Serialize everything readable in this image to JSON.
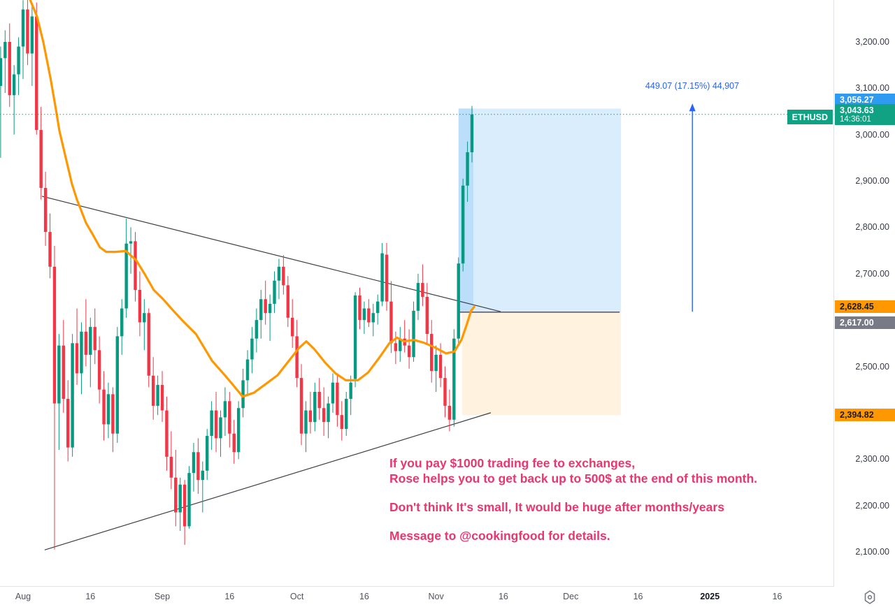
{
  "symbol_badge": {
    "symbol": "ETHUSD",
    "price": "3,043.63",
    "countdown": "14:36:01"
  },
  "measure_label": {
    "text": "449.07 (17.15%) 44,907"
  },
  "annotation": {
    "lines": [
      "If you pay $1000 trading fee to exchanges,",
      "Rose helps you to get back up to 500$ at the end of this month.",
      "Don't think It's small, It would be huge after months/years",
      "Message to @cookingfood for details."
    ]
  },
  "price_axis": {
    "ticks": [
      {
        "label": "3,200.00",
        "price": 3200
      },
      {
        "label": "3,100.00",
        "price": 3100
      },
      {
        "label": "3,000.00",
        "price": 3000
      },
      {
        "label": "2,900.00",
        "price": 2900
      },
      {
        "label": "2,800.00",
        "price": 2800
      },
      {
        "label": "2,700.00",
        "price": 2700
      },
      {
        "label": "2,500.00",
        "price": 2500
      },
      {
        "label": "2,300.00",
        "price": 2300
      },
      {
        "label": "2,200.00",
        "price": 2200
      },
      {
        "label": "2,100.00",
        "price": 2100
      }
    ],
    "badges": [
      {
        "id": "box-top-label",
        "label": "3,056.27",
        "price": 3056.27,
        "bg": "#2e9bf0",
        "fg": "#ffffff"
      },
      {
        "id": "ma-value-label",
        "label": "2,628.45",
        "price": 2628.45,
        "bg": "#ff9800",
        "fg": "#1b1b1b"
      },
      {
        "id": "hline-label",
        "label": "2,617.00",
        "price": 2617.0,
        "bg": "#787b86",
        "fg": "#ffffff"
      },
      {
        "id": "box-bottom-label",
        "label": "2,394.82",
        "price": 2394.82,
        "bg": "#ff9800",
        "fg": "#1b1b1b"
      }
    ]
  },
  "time_axis": {
    "labels": [
      {
        "text": "Aug",
        "day": 0,
        "bold": false
      },
      {
        "text": "16",
        "day": 15,
        "bold": false
      },
      {
        "text": "Sep",
        "day": 31,
        "bold": false
      },
      {
        "text": "16",
        "day": 46,
        "bold": false
      },
      {
        "text": "Oct",
        "day": 61,
        "bold": false
      },
      {
        "text": "16",
        "day": 76,
        "bold": false
      },
      {
        "text": "Nov",
        "day": 92,
        "bold": false
      },
      {
        "text": "16",
        "day": 107,
        "bold": false
      },
      {
        "text": "Dec",
        "day": 122,
        "bold": false
      },
      {
        "text": "16",
        "day": 137,
        "bold": false
      },
      {
        "text": "2025",
        "day": 153,
        "bold": true
      },
      {
        "text": "16",
        "day": 168,
        "bold": false
      }
    ]
  },
  "colors": {
    "up": "#089981",
    "down": "#f23645",
    "ma": "#ff9800",
    "trendline": "#3c3f46",
    "hline": "#50535e",
    "price_line": "#11a183",
    "measure_blue": "#2962ff",
    "box_blue_fill": "rgba(33,150,243,0.17)",
    "box_cream_fill": "rgba(255,167,38,0.14)",
    "promo_pink": "#e8366e"
  },
  "chart_data": {
    "type": "candlestick",
    "symbol": "ETHUSD",
    "timeframe": "1D",
    "x_axis_start": "Aug",
    "first_candle_day": -5,
    "price_range_visible": [
      2022,
      3286
    ],
    "grid": false,
    "last_price": 3043.63,
    "candles": [
      [
        3105,
        3190,
        2950,
        3165
      ],
      [
        3165,
        3225,
        3090,
        3200
      ],
      [
        3200,
        3240,
        3060,
        3085
      ],
      [
        3085,
        3150,
        3000,
        3130
      ],
      [
        3130,
        3210,
        3085,
        3190
      ],
      [
        3190,
        3290,
        3120,
        3270
      ],
      [
        3270,
        3295,
        3150,
        3175
      ],
      [
        3175,
        3280,
        3105,
        3255
      ],
      [
        3255,
        3285,
        3000,
        3010
      ],
      [
        3010,
        3060,
        2860,
        2885
      ],
      [
        2885,
        2920,
        2760,
        2790
      ],
      [
        2790,
        2830,
        2690,
        2715
      ],
      [
        2715,
        2760,
        2105,
        2420
      ],
      [
        2420,
        2570,
        2320,
        2545
      ],
      [
        2545,
        2600,
        2400,
        2430
      ],
      [
        2430,
        2470,
        2295,
        2325
      ],
      [
        2325,
        2570,
        2305,
        2550
      ],
      [
        2550,
        2625,
        2460,
        2485
      ],
      [
        2485,
        2595,
        2440,
        2575
      ],
      [
        2575,
        2645,
        2500,
        2525
      ],
      [
        2525,
        2605,
        2455,
        2585
      ],
      [
        2585,
        2625,
        2505,
        2535
      ],
      [
        2535,
        2565,
        2420,
        2450
      ],
      [
        2450,
        2490,
        2340,
        2375
      ],
      [
        2375,
        2465,
        2345,
        2440
      ],
      [
        2440,
        2455,
        2315,
        2355
      ],
      [
        2355,
        2585,
        2335,
        2565
      ],
      [
        2565,
        2645,
        2525,
        2625
      ],
      [
        2625,
        2819,
        2605,
        2765
      ],
      [
        2765,
        2800,
        2700,
        2770
      ],
      [
        2770,
        2790,
        2640,
        2665
      ],
      [
        2665,
        2705,
        2565,
        2595
      ],
      [
        2595,
        2645,
        2535,
        2615
      ],
      [
        2615,
        2625,
        2455,
        2480
      ],
      [
        2480,
        2520,
        2385,
        2415
      ],
      [
        2415,
        2480,
        2395,
        2460
      ],
      [
        2460,
        2490,
        2380,
        2405
      ],
      [
        2405,
        2435,
        2275,
        2305
      ],
      [
        2305,
        2360,
        2235,
        2260
      ],
      [
        2260,
        2320,
        2155,
        2185
      ],
      [
        2185,
        2260,
        2145,
        2245
      ],
      [
        2245,
        2255,
        2115,
        2155
      ],
      [
        2155,
        2285,
        2150,
        2270
      ],
      [
        2270,
        2335,
        2230,
        2315
      ],
      [
        2315,
        2345,
        2225,
        2255
      ],
      [
        2255,
        2295,
        2185,
        2275
      ],
      [
        2275,
        2365,
        2255,
        2350
      ],
      [
        2350,
        2425,
        2320,
        2405
      ],
      [
        2405,
        2445,
        2315,
        2345
      ],
      [
        2345,
        2405,
        2305,
        2390
      ],
      [
        2390,
        2455,
        2350,
        2425
      ],
      [
        2425,
        2445,
        2325,
        2355
      ],
      [
        2355,
        2385,
        2290,
        2315
      ],
      [
        2315,
        2425,
        2300,
        2410
      ],
      [
        2410,
        2495,
        2390,
        2470
      ],
      [
        2470,
        2535,
        2440,
        2515
      ],
      [
        2515,
        2585,
        2485,
        2560
      ],
      [
        2560,
        2625,
        2530,
        2600
      ],
      [
        2600,
        2665,
        2560,
        2645
      ],
      [
        2645,
        2685,
        2590,
        2615
      ],
      [
        2615,
        2655,
        2555,
        2635
      ],
      [
        2635,
        2705,
        2615,
        2685
      ],
      [
        2685,
        2732,
        2645,
        2715
      ],
      [
        2715,
        2740,
        2655,
        2675
      ],
      [
        2675,
        2695,
        2585,
        2605
      ],
      [
        2605,
        2645,
        2540,
        2565
      ],
      [
        2565,
        2600,
        2455,
        2475
      ],
      [
        2475,
        2505,
        2330,
        2355
      ],
      [
        2355,
        2425,
        2315,
        2405
      ],
      [
        2405,
        2445,
        2355,
        2380
      ],
      [
        2380,
        2465,
        2360,
        2445
      ],
      [
        2445,
        2475,
        2385,
        2410
      ],
      [
        2410,
        2455,
        2350,
        2380
      ],
      [
        2380,
        2435,
        2345,
        2420
      ],
      [
        2420,
        2485,
        2400,
        2465
      ],
      [
        2465,
        2485,
        2370,
        2395
      ],
      [
        2395,
        2425,
        2340,
        2365
      ],
      [
        2365,
        2445,
        2350,
        2430
      ],
      [
        2430,
        2480,
        2395,
        2465
      ],
      [
        2473,
        2660,
        2455,
        2653
      ],
      [
        2653,
        2670,
        2580,
        2600
      ],
      [
        2600,
        2640,
        2570,
        2625
      ],
      [
        2625,
        2645,
        2585,
        2595
      ],
      [
        2595,
        2635,
        2565,
        2615
      ],
      [
        2615,
        2655,
        2590,
        2640
      ],
      [
        2640,
        2766,
        2630,
        2744
      ],
      [
        2741,
        2766,
        2620,
        2640
      ],
      [
        2640,
        2684,
        2529,
        2550
      ],
      [
        2550,
        2575,
        2505,
        2533
      ],
      [
        2533,
        2585,
        2510,
        2560
      ],
      [
        2560,
        2600,
        2530,
        2545
      ],
      [
        2545,
        2580,
        2495,
        2520
      ],
      [
        2520,
        2640,
        2510,
        2620
      ],
      [
        2620,
        2700,
        2600,
        2680
      ],
      [
        2680,
        2720,
        2630,
        2650
      ],
      [
        2650,
        2680,
        2550,
        2570
      ],
      [
        2570,
        2600,
        2465,
        2490
      ],
      [
        2490,
        2545,
        2445,
        2525
      ],
      [
        2525,
        2550,
        2455,
        2475
      ],
      [
        2475,
        2500,
        2390,
        2415
      ],
      [
        2415,
        2450,
        2360,
        2385
      ],
      [
        2385,
        2580,
        2370,
        2560
      ],
      [
        2560,
        2735,
        2550,
        2722
      ],
      [
        2722,
        2905,
        2705,
        2890
      ],
      [
        2890,
        2985,
        2855,
        2962
      ],
      [
        2962,
        3062,
        2940,
        3043.63
      ]
    ],
    "ma_line": {
      "name": "moving-average",
      "points_day_price": [
        [
          1.6,
          3290
        ],
        [
          3.1,
          3255
        ],
        [
          4.5,
          3200
        ],
        [
          6.1,
          3122
        ],
        [
          7.3,
          3055
        ],
        [
          8.1,
          3008
        ],
        [
          9.7,
          2942
        ],
        [
          10.9,
          2893
        ],
        [
          12.0,
          2860
        ],
        [
          14.0,
          2810
        ],
        [
          15.6,
          2783
        ],
        [
          17.1,
          2757
        ],
        [
          18.5,
          2747
        ],
        [
          20.6,
          2747
        ],
        [
          22.9,
          2749
        ],
        [
          25.2,
          2729
        ],
        [
          27.1,
          2699
        ],
        [
          29.1,
          2665
        ],
        [
          31.2,
          2645
        ],
        [
          33.3,
          2622
        ],
        [
          35.4,
          2600
        ],
        [
          38.5,
          2570
        ],
        [
          42.1,
          2512
        ],
        [
          45.2,
          2478
        ],
        [
          47.2,
          2455
        ],
        [
          48.9,
          2435
        ],
        [
          51.4,
          2443
        ],
        [
          54.5,
          2465
        ],
        [
          56.7,
          2481
        ],
        [
          59.2,
          2512
        ],
        [
          61.4,
          2539
        ],
        [
          63.1,
          2554
        ],
        [
          64.9,
          2537
        ],
        [
          67.3,
          2508
        ],
        [
          69.6,
          2485
        ],
        [
          71.9,
          2470
        ],
        [
          74.6,
          2470
        ],
        [
          76.9,
          2487
        ],
        [
          79.3,
          2518
        ],
        [
          81.6,
          2550
        ],
        [
          83.3,
          2562
        ],
        [
          84.9,
          2554
        ],
        [
          87.1,
          2557
        ],
        [
          89.3,
          2551
        ],
        [
          91.7,
          2541
        ],
        [
          94.2,
          2528
        ],
        [
          96.1,
          2532
        ],
        [
          97.7,
          2558
        ],
        [
          98.9,
          2592
        ],
        [
          99.8,
          2620
        ],
        [
          100.5,
          2628.45
        ]
      ]
    },
    "drawings": {
      "descending_trendline": {
        "from_day_price": [
          4.2,
          2867
        ],
        "to_day_price": [
          106.4,
          2618
        ]
      },
      "ascending_trendline": {
        "from_day_price": [
          4.8,
          2104
        ],
        "to_day_price": [
          104.2,
          2400
        ]
      },
      "horizontal_line": {
        "price": 2617,
        "from_day": 97.0,
        "to_day": 132.9
      },
      "projection_box_blue": {
        "from_day": 97.0,
        "to_day": 133.2,
        "top_price": 3056.27,
        "bottom_price": 2617
      },
      "projection_box_blue_inner_strip": {
        "from_day": 97.0,
        "to_day": 100.3
      },
      "projection_box_cream": {
        "from_day": 97.8,
        "to_day": 133.2,
        "top_price": 2617,
        "bottom_price": 2394.82
      },
      "measure_arrow": {
        "day": 149.1,
        "from_price": 2618,
        "to_price": 3067
      },
      "current_price_dotted_line": {
        "price": 3043.63
      }
    }
  }
}
